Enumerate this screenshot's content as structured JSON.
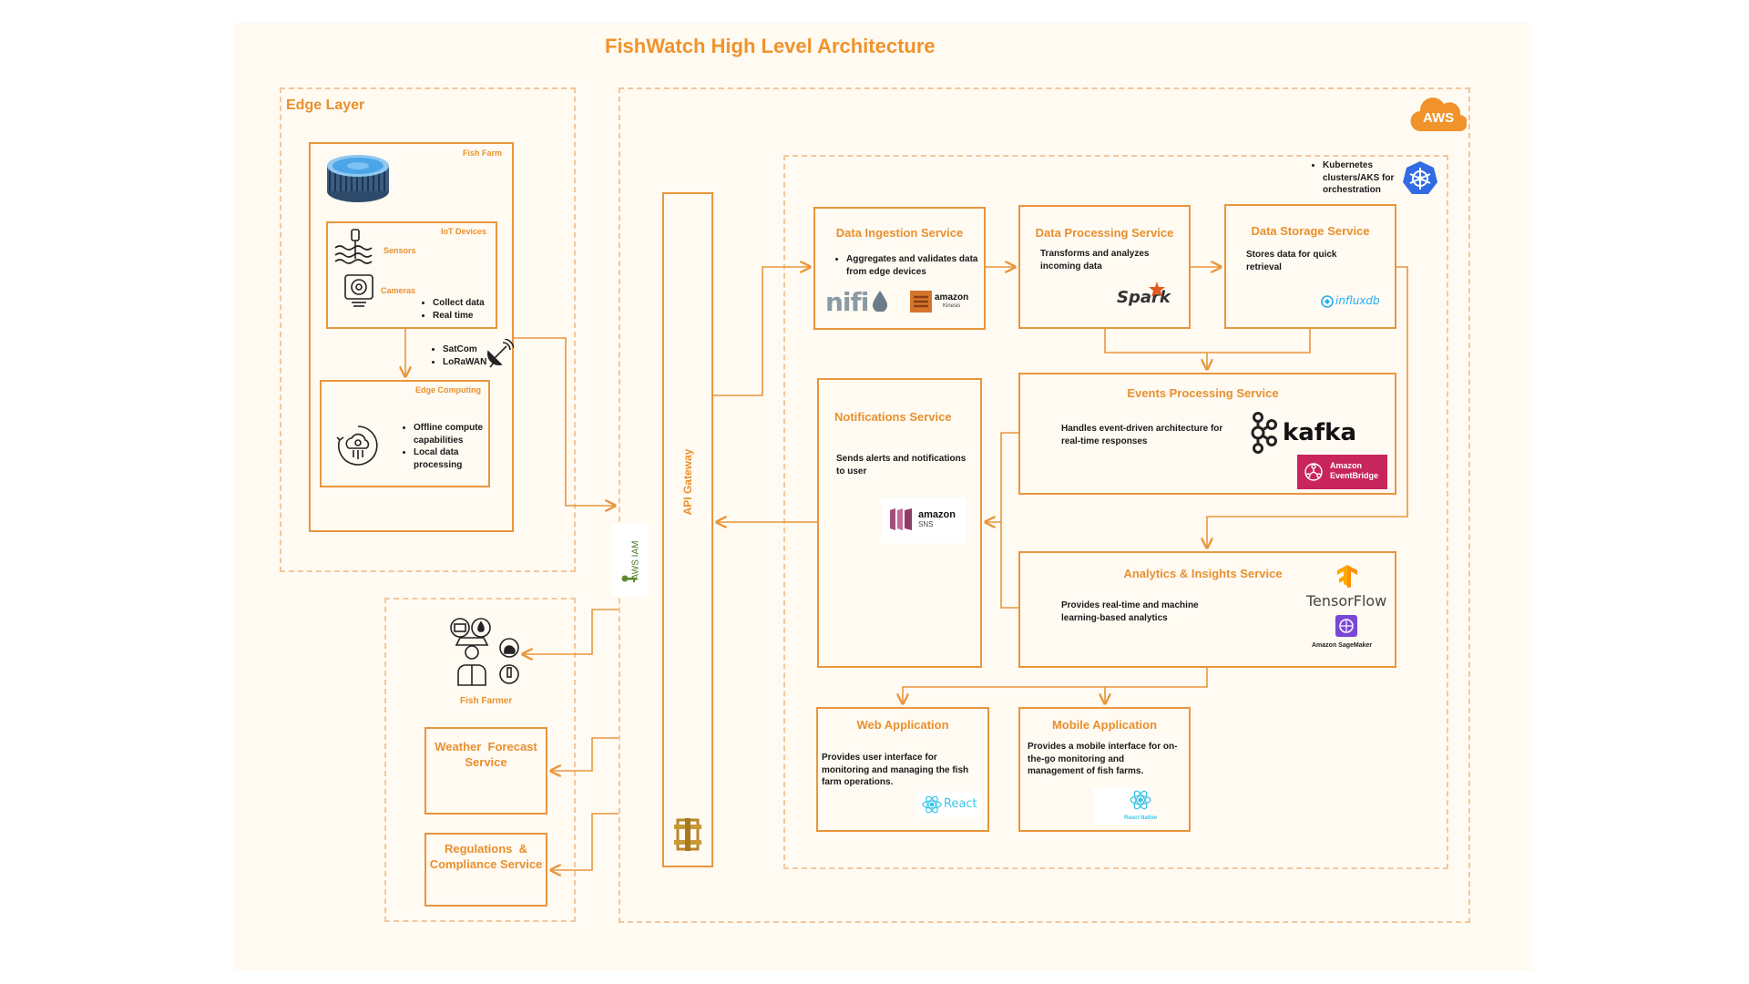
{
  "diagram": {
    "title": "FishWatch High Level Architecture",
    "colors": {
      "accent": "#f0932b",
      "line": "#e8963c",
      "dash": "#f3c79c",
      "background": "#fffaf2",
      "aws": "#f0932b",
      "k8s": "#326ce5"
    },
    "edge_layer": {
      "label": "Edge Layer",
      "fish_farm": {
        "label": "Fish Farm",
        "icon": "fish-tank-icon"
      },
      "iot_devices": {
        "label": "IoT Devices",
        "sensors": "Sensors",
        "cameras": "Cameras",
        "bullets": [
          "Collect data",
          "Real time"
        ]
      },
      "connectivity": [
        "SatCom",
        "LoRaWAN"
      ],
      "edge_computing": {
        "label": "Edge Computing",
        "bullets": [
          "Offline compute capabilities",
          "Local data processing"
        ]
      }
    },
    "iam": {
      "label": "AWS IAM"
    },
    "fish_farmer": {
      "label": "Fish Farmer"
    },
    "weather": {
      "label": "Weather  Forecast Service"
    },
    "regulations": {
      "label": "Regulations  & Compliance Service"
    },
    "aws": {
      "badge": "AWS",
      "kubernetes": "Kubernetes clusters/AKS for orchestration",
      "api_gateway": "API Gateway"
    },
    "services": {
      "ingestion": {
        "title": "Data Ingestion Service",
        "bullet": "Aggregates and validates data from edge devices",
        "logo1": "nifi",
        "logo2_line1": "amazon",
        "logo2_line2": "Kinesis"
      },
      "processing": {
        "title": "Data Processing Service",
        "desc": "Transforms and analyzes incoming data",
        "logo": "Spark"
      },
      "storage": {
        "title": "Data Storage Service",
        "desc": "Stores  data for quick retrieval",
        "logo": "influxdb"
      },
      "notifications": {
        "title": "Notifications Service",
        "desc": "Sends alerts and notifications to user",
        "logo_line1": "amazon",
        "logo_line2": "SNS"
      },
      "events": {
        "title": "Events Processing Service",
        "desc": "Handles event-driven architecture for real-time responses",
        "logo1": "kafka",
        "logo2_line1": "Amazon",
        "logo2_line2": "EventBridge"
      },
      "analytics": {
        "title": "Analytics & Insights Service",
        "desc": "Provides real-time and machine learning-based analytics",
        "logo1": "TensorFlow",
        "logo2": "Amazon SageMaker"
      },
      "web": {
        "title": "Web Application",
        "desc": "Provides user interface for monitoring and managing the fish farm operations.",
        "logo": "React"
      },
      "mobile": {
        "title": "Mobile Application",
        "desc": "Provides a mobile interface for on-the-go monitoring and management of fish farms.",
        "logo": "React Native"
      }
    }
  }
}
